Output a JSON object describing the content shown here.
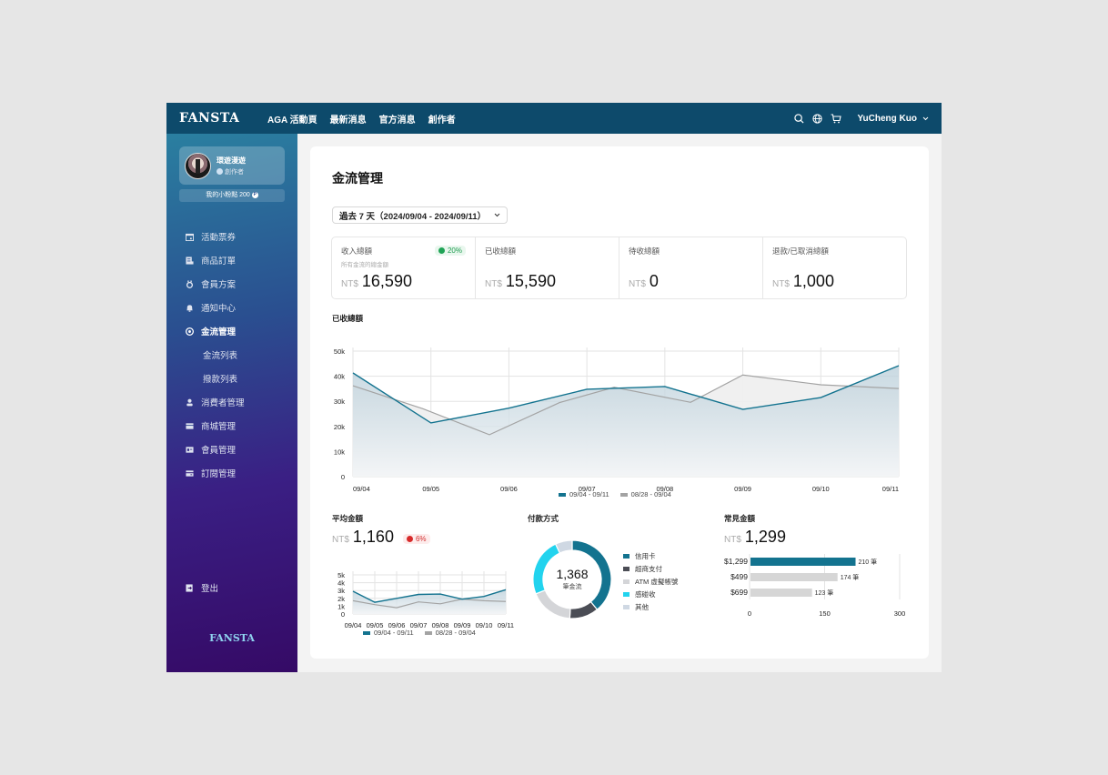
{
  "topbar": {
    "logo": "FANSTA",
    "nav": [
      "AGA 活動頁",
      "最新消息",
      "官方消息",
      "創作者"
    ],
    "user_name": "YuCheng Kuo",
    "icons": [
      "search-icon",
      "globe-icon",
      "cart-icon",
      "chevron-down-icon"
    ]
  },
  "sidebar": {
    "profile_name": "環遊漫遊",
    "profile_role": "創作者",
    "points_label": "我的小粉點 200",
    "points_icon": "P",
    "items": [
      {
        "label": "活動票券",
        "icon": "calendar-icon"
      },
      {
        "label": "商品訂單",
        "icon": "receipt-icon"
      },
      {
        "label": "會員方案",
        "icon": "medal-icon"
      },
      {
        "label": "通知中心",
        "icon": "bell-icon"
      },
      {
        "label": "金流管理",
        "icon": "money-icon",
        "active": true
      },
      {
        "label": "金流列表",
        "sub": true
      },
      {
        "label": "撥款列表",
        "sub": true
      },
      {
        "label": "消費者管理",
        "icon": "user-icon"
      },
      {
        "label": "商城管理",
        "icon": "store-icon"
      },
      {
        "label": "會員管理",
        "icon": "member-card-icon"
      },
      {
        "label": "訂閱管理",
        "icon": "subscription-icon"
      }
    ],
    "logout": "登出",
    "footer_logo": "FANSTA"
  },
  "main": {
    "title": "金流管理",
    "date_range": "過去 7 天（2024/09/04 - 2024/09/11）",
    "currency": "NT$",
    "stats": [
      {
        "label": "收入總額",
        "sub": "所有金流的總金額",
        "value": "16,590",
        "badge": "20%"
      },
      {
        "label": "已收總額",
        "value": "15,590"
      },
      {
        "label": "待收總額",
        "value": "0"
      },
      {
        "label": "退款/已取消總額",
        "value": "1,000"
      }
    ],
    "received_chart_title": "已收總額",
    "avg": {
      "title": "平均金額",
      "value": "1,160",
      "badge": "6%"
    },
    "payment": {
      "title": "付款方式",
      "center_value": "1,368",
      "center_label": "筆金流"
    },
    "common": {
      "title": "常見金額",
      "value": "1,299"
    },
    "colors": {
      "primary": "#13738f",
      "gray": "#a3a3a3",
      "cyan": "#22d3ee",
      "dark": "#4b4d55"
    }
  },
  "chart_data": [
    {
      "type": "area",
      "title": "已收總額",
      "categories": [
        "09/04",
        "09/05",
        "09/06",
        "09/07",
        "09/08",
        "09/09",
        "09/10",
        "09/11"
      ],
      "yticks": [
        "0",
        "10k",
        "20k",
        "30k",
        "40k",
        "50k"
      ],
      "ylim": [
        0,
        50000
      ],
      "grid": true,
      "legend_position": "bottom",
      "series": [
        {
          "name": "09/04 - 09/11",
          "color": "#13738f",
          "x": [
            0,
            1,
            2,
            3,
            4,
            5,
            6,
            7
          ],
          "values": [
            41300,
            21400,
            27300,
            34800,
            35900,
            26800,
            31500,
            44200
          ]
        },
        {
          "name": "08/28 - 09/04",
          "color": "#a3a3a3",
          "x": [
            0,
            0.9,
            1.75,
            2.65,
            3.35,
            4.33,
            5.0,
            6.0,
            7.0
          ],
          "values": [
            36200,
            27000,
            16700,
            29500,
            35600,
            29600,
            40500,
            36600,
            35100
          ]
        }
      ]
    },
    {
      "type": "area",
      "title": "平均金額",
      "categories": [
        "09/04",
        "09/05",
        "09/06",
        "09/07",
        "09/08",
        "09/09",
        "09/10",
        "09/11"
      ],
      "yticks": [
        "0",
        "1k",
        "2k",
        "3k",
        "4k",
        "5k"
      ],
      "ylim": [
        0,
        5000
      ],
      "grid": true,
      "legend_position": "bottom",
      "series": [
        {
          "name": "09/04 - 09/11",
          "color": "#13738f",
          "values": [
            2900,
            1500,
            2000,
            2500,
            2550,
            1900,
            2250,
            3100
          ]
        },
        {
          "name": "08/28 - 09/04",
          "color": "#a3a3a3",
          "values": [
            1700,
            1200,
            800,
            1550,
            1300,
            1900,
            1700,
            1600
          ]
        }
      ]
    },
    {
      "type": "pie",
      "title": "付款方式",
      "center_value": "1,368",
      "center_label": "筆金流",
      "categories": [
        "信用卡",
        "超商支付",
        "ATM 虛擬帳號",
        "感碰收",
        "其他"
      ],
      "values": [
        39,
        12,
        18,
        24,
        7
      ],
      "colors": [
        "#13738f",
        "#4b4d55",
        "#d4d5d8",
        "#22d3ee",
        "#cfd8e3"
      ],
      "legend_position": "right"
    },
    {
      "type": "bar",
      "orientation": "horizontal",
      "title": "常見金額",
      "categories": [
        "$1,299",
        "$499",
        "$699"
      ],
      "values": [
        210,
        174,
        123
      ],
      "value_labels": [
        "210 筆",
        "174 筆",
        "123 筆"
      ],
      "xticks": [
        "0",
        "150",
        "300"
      ],
      "xlim": [
        0,
        300
      ],
      "colors": [
        "#13738f",
        "#d6d6d6",
        "#d6d6d6"
      ]
    }
  ]
}
